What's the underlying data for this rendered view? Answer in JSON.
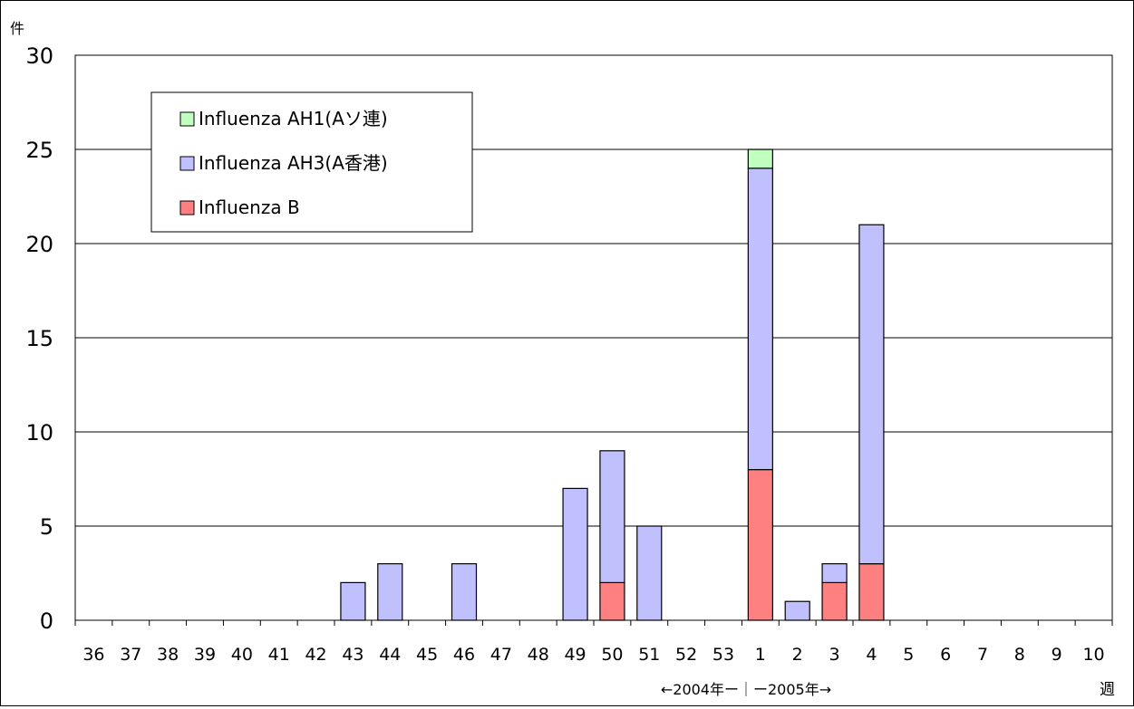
{
  "chart_data": {
    "type": "bar",
    "stacked": true,
    "ylabel": "件",
    "xlabel": "週",
    "period_label": "←2004年ー｜ー2005年→",
    "ylim": [
      0,
      30
    ],
    "yticks": [
      "0",
      "5",
      "10",
      "15",
      "20",
      "25",
      "30"
    ],
    "categories": [
      "36",
      "37",
      "38",
      "39",
      "40",
      "41",
      "42",
      "43",
      "44",
      "45",
      "46",
      "47",
      "48",
      "49",
      "50",
      "51",
      "52",
      "53",
      "1",
      "2",
      "3",
      "4",
      "5",
      "6",
      "7",
      "8",
      "9",
      "10"
    ],
    "series": [
      {
        "name": "Influenza B",
        "color": "#ff8080",
        "values": [
          0,
          0,
          0,
          0,
          0,
          0,
          0,
          0,
          0,
          0,
          0,
          0,
          0,
          0,
          2,
          0,
          0,
          0,
          8,
          0,
          2,
          3,
          0,
          0,
          0,
          0,
          0,
          0
        ]
      },
      {
        "name": "Influenza AH3(A香港)",
        "color": "#c0c0ff",
        "values": [
          0,
          0,
          0,
          0,
          0,
          0,
          0,
          2,
          3,
          0,
          3,
          0,
          0,
          7,
          7,
          5,
          0,
          0,
          16,
          1,
          1,
          18,
          0,
          0,
          0,
          0,
          0,
          0
        ]
      },
      {
        "name": "Influenza AH1(Aソ連)",
        "color": "#c0ffc0",
        "values": [
          0,
          0,
          0,
          0,
          0,
          0,
          0,
          0,
          0,
          0,
          0,
          0,
          0,
          0,
          0,
          0,
          0,
          0,
          1,
          0,
          0,
          0,
          0,
          0,
          0,
          0,
          0,
          0
        ]
      }
    ],
    "legend": {
      "placement": "top-left",
      "entries": [
        {
          "label": "Influenza AH1(Aソ連)",
          "color": "#c0ffc0"
        },
        {
          "label": "Influenza AH3(A香港)",
          "color": "#c0c0ff"
        },
        {
          "label": "Influenza B",
          "color": "#ff8080"
        }
      ]
    },
    "grid": true
  }
}
